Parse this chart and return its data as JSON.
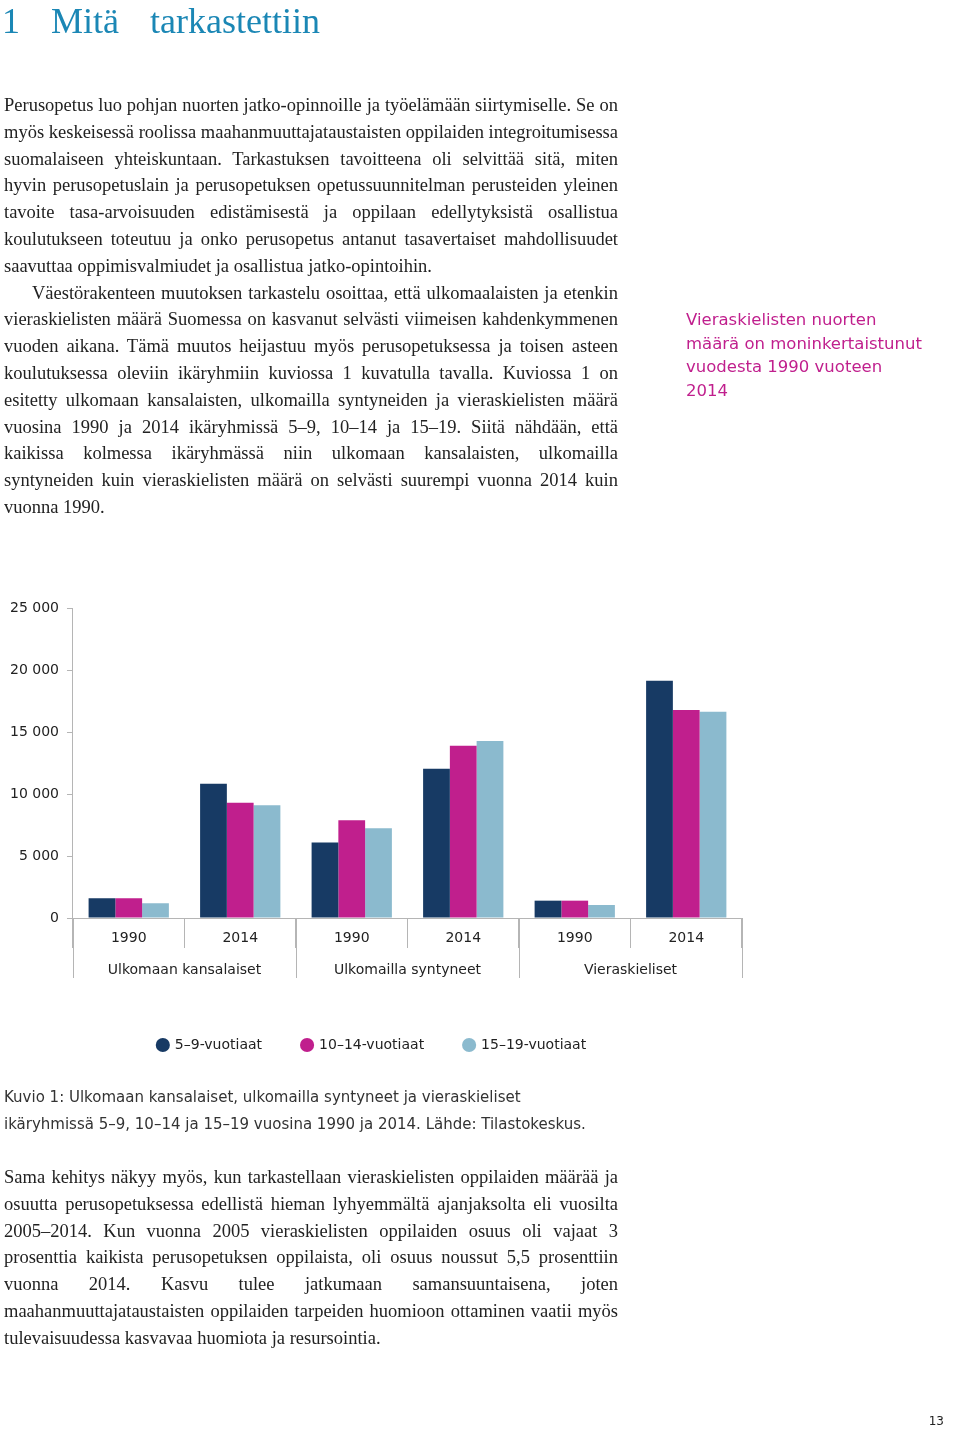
{
  "chart_data": {
    "type": "bar",
    "title": "1 Mitä tarkastettiin",
    "categories": [
      "1990",
      "2014",
      "1990",
      "2014",
      "1990",
      "2014"
    ],
    "series": [
      {
        "name": "5–9-vuotiaat",
        "color": "#173a64",
        "values": [
          1600,
          10850,
          6100,
          12050,
          1400,
          19150
        ]
      },
      {
        "name": "10–14-vuotiaat",
        "color": "#c01f8d",
        "values": [
          1600,
          9300,
          7900,
          13900,
          1400,
          16800
        ]
      },
      {
        "name": "15–19-vuotiaat",
        "color": "#8bbace",
        "values": [
          1200,
          9100,
          7250,
          14300,
          1050,
          16650
        ]
      }
    ],
    "ylim": [
      0,
      25000
    ],
    "yticks": [
      {
        "value": 0,
        "label": "0"
      },
      {
        "value": 5000,
        "label": "5 000"
      },
      {
        "value": 10000,
        "label": "10 000"
      },
      {
        "value": 15000,
        "label": "15 000"
      },
      {
        "value": 20000,
        "label": "20 000"
      },
      {
        "value": 25000,
        "label": "25 000"
      }
    ],
    "grid": false,
    "legend": "bottom",
    "annotations": [
      "Perusopetus luo pohjan nuorten jatko-opinnoille ja työelämään siirtymiselle. Se on myös keskeisessä roolissa maahanmuuttajataustaisten oppilaiden integroitumisessa suomalaiseen yhteiskuntaan. Tarkastuksen tavoitteena oli selvittää sitä, miten hyvin perusopetuslain ja perusopetuksen opetussuunnitelman perusteiden yleinen tavoite tasa-arvoisuuden edistämisestä ja oppilaan edellytyksistä osallistua koulutukseen toteutuu ja onko perusopetus antanut tasavertaiset mahdollisuudet saavuttaa oppimisvalmiudet ja osallistua jatko-opintoihin.",
      "Väestörakenteen muutoksen tarkastelu osoittaa, että ulkomaalaisten ja etenkin vieraskielisten määrä Suomessa on kasvanut selvästi viimeisen kahdenkymmenen vuoden aikana. Tämä muutos heijastuu myös perusopetuksessa ja toisen asteen koulutuksessa oleviin ikäryhmiin kuviossa 1 kuvatulla tavalla. Kuviossa 1 on esitetty ulkomaan kansalaisten, ulkomailla syntyneiden ja vieraskielisten määrä vuosina 1990 ja 2014 ikäryhmissä 5–9, 10–14 ja 15–19. Siitä nähdään, että kaikissa kolmessa ikäryhmässä niin ulkomaan kansalaisten, ulkomailla syntyneiden kuin vieraskielisten määrä on selvästi suurempi vuonna 2014 kuin vuonna 1990.",
      "Vieraskielisten nuorten määrä on moninkertaistunut vuodesta 1990 vuoteen 2014",
      "Ulkomaan kansalaiset",
      "Ulkomailla syntyneet",
      "Vieraskieliset",
      "Kuvio 1: Ulkomaan kansalaiset, ulkomailla syntyneet ja vieraskieliset ikäryhmissä 5–9, 10–14 ja 15–19 vuosina 1990 ja 2014. Lähde: Tilastokeskus.",
      "Sama kehitys näkyy myös, kun tarkastellaan vieraskielisten oppilaiden määrää ja osuutta perusopetuksessa edellistä hieman lyhyemmältä ajanjaksolta eli vuosilta 2005–2014. Kun vuonna 2005 vieraskielisten oppilaiden osuus oli vajaat 3 prosenttia kaikista perusopetuksen oppilaista, oli osuus noussut 5,5 prosenttiin vuonna 2014. Kasvu tulee jatkumaan samansuuntaisena, joten maahanmuuttajataustaisten oppilaiden tarpeiden huomioon ottaminen vaatii myös tulevaisuudessa kasvavaa huomiota ja resursointia.",
      "13"
    ]
  }
}
